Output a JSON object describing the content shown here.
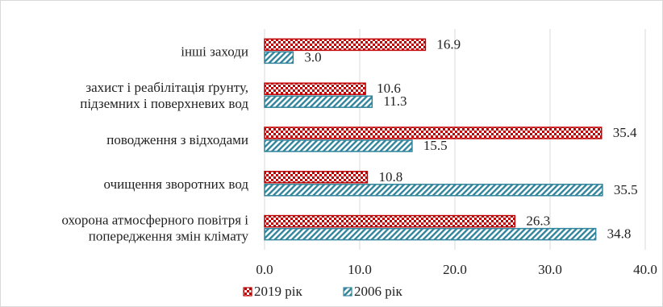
{
  "chart_data": {
    "type": "bar",
    "orientation": "horizontal",
    "categories": [
      [
        "інші заходи"
      ],
      [
        "захист і реабілітація ґрунту,",
        "підземних  і поверхневих вод"
      ],
      [
        "поводження з відходами"
      ],
      [
        "очищення зворотних вод"
      ],
      [
        "охорона атмосферного повітря і",
        "попередження змін клімату"
      ]
    ],
    "series": [
      {
        "name": "2019 рік",
        "values": [
          16.9,
          10.6,
          35.4,
          10.8,
          26.3
        ],
        "value_labels": [
          "16.9",
          "10.6",
          "35.4",
          "10.8",
          "26.3"
        ],
        "color": "#c00000",
        "pattern": "checker"
      },
      {
        "name": "2006 рік",
        "values": [
          3.0,
          11.3,
          15.5,
          35.5,
          34.8
        ],
        "value_labels": [
          "3.0",
          "11.3",
          "15.5",
          "35.5",
          "34.8"
        ],
        "color": "#31849b",
        "pattern": "diagonal"
      }
    ],
    "xlim": [
      0,
      40
    ],
    "xticks": [
      "0.0",
      "10.0",
      "20.0",
      "30.0",
      "40.0"
    ],
    "grid": true,
    "legend_position": "bottom"
  }
}
